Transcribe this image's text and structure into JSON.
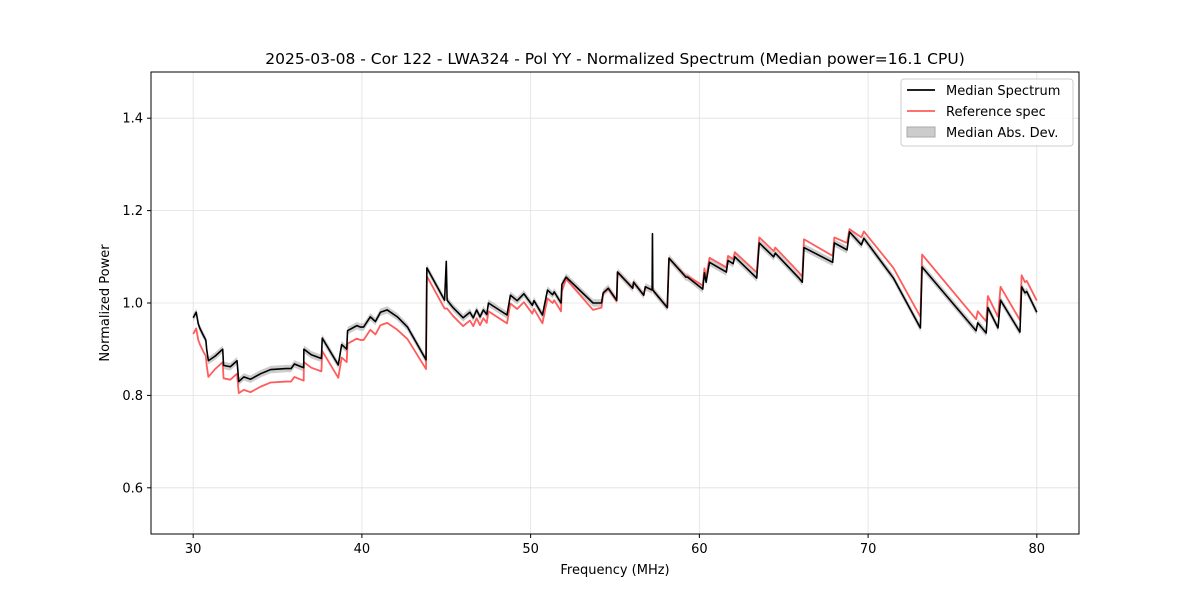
{
  "chart_data": {
    "type": "line",
    "title": "2025-03-08 - Cor 122 - LWA324 - Pol YY - Normalized Spectrum (Median power=16.1 CPU)",
    "xlabel": "Frequency (MHz)",
    "ylabel": "Normalized Power",
    "xlim": [
      27.5,
      82.5
    ],
    "ylim": [
      0.5,
      1.5
    ],
    "xticks": [
      30,
      40,
      50,
      60,
      70,
      80
    ],
    "xtick_labels": [
      "30",
      "40",
      "50",
      "60",
      "70",
      "80"
    ],
    "yticks": [
      0.6,
      0.8,
      1.0,
      1.2,
      1.4
    ],
    "ytick_labels": [
      "0.6",
      "0.8",
      "1.0",
      "1.2",
      "1.4"
    ],
    "grid": true,
    "legend_position": "top-right",
    "legend": [
      "Median Spectrum",
      "Reference spec",
      "Median Abs. Dev."
    ],
    "colors": {
      "median": "#000000",
      "reference": "#ff5c5c",
      "mad": "#bbbbbb"
    },
    "mad_halfwidth": 0.008,
    "x": [
      30.0,
      30.18,
      30.3,
      30.4,
      30.6,
      30.75,
      30.8,
      30.9,
      31.3,
      31.75,
      31.8,
      32.2,
      32.6,
      32.7,
      33.0,
      33.4,
      34.0,
      34.6,
      35.5,
      35.8,
      36.0,
      36.4,
      36.55,
      36.56,
      37.0,
      37.6,
      37.65,
      38.6,
      38.8,
      39.1,
      39.15,
      39.7,
      39.9,
      40.1,
      40.5,
      40.8,
      41.1,
      41.5,
      42.1,
      42.7,
      43.8,
      43.85,
      44.9,
      45.0,
      45.05,
      45.4,
      46.0,
      46.4,
      46.6,
      46.8,
      47.0,
      47.2,
      47.4,
      47.5,
      48.6,
      48.8,
      49.2,
      49.6,
      50.1,
      50.2,
      50.7,
      51.0,
      51.3,
      51.4,
      51.8,
      51.85,
      52.1,
      53.7,
      54.2,
      54.3,
      54.6,
      55.1,
      55.15,
      56.05,
      56.1,
      56.7,
      56.8,
      57.2,
      57.22,
      57.24,
      58.1,
      58.2,
      59.2,
      59.3,
      60.2,
      60.3,
      60.4,
      60.6,
      61.6,
      61.7,
      62.0,
      62.1,
      63.4,
      63.55,
      64.4,
      64.5,
      65.9,
      66.1,
      66.2,
      67.9,
      68.0,
      68.75,
      68.9,
      69.6,
      69.75,
      71.5,
      73.1,
      73.2,
      76.4,
      76.5,
      77.0,
      77.1,
      77.7,
      77.85,
      79.0,
      79.1,
      79.3,
      79.4,
      80.0
    ],
    "series": [
      {
        "name": "Median Spectrum",
        "values": [
          0.968,
          0.98,
          0.955,
          0.945,
          0.93,
          0.92,
          0.9,
          0.875,
          0.885,
          0.9,
          0.865,
          0.862,
          0.875,
          0.83,
          0.84,
          0.835,
          0.847,
          0.856,
          0.858,
          0.858,
          0.868,
          0.862,
          0.86,
          0.9,
          0.888,
          0.88,
          0.924,
          0.866,
          0.91,
          0.9,
          0.94,
          0.951,
          0.948,
          0.948,
          0.97,
          0.96,
          0.98,
          0.985,
          0.97,
          0.948,
          0.877,
          1.076,
          1.006,
          1.09,
          1.006,
          0.99,
          0.968,
          0.98,
          0.968,
          0.985,
          0.97,
          0.985,
          0.975,
          1.0,
          0.974,
          1.017,
          1.005,
          1.02,
          0.995,
          1.005,
          0.974,
          1.028,
          1.018,
          1.024,
          1.0,
          1.04,
          1.056,
          1.0,
          1.0,
          1.022,
          1.032,
          1.006,
          1.067,
          1.032,
          1.045,
          1.017,
          1.035,
          1.028,
          1.15,
          1.028,
          0.99,
          1.097,
          1.056,
          1.056,
          1.03,
          1.065,
          1.045,
          1.088,
          1.067,
          1.092,
          1.085,
          1.1,
          1.054,
          1.13,
          1.1,
          1.108,
          1.054,
          1.045,
          1.12,
          1.088,
          1.13,
          1.115,
          1.154,
          1.126,
          1.14,
          1.054,
          0.946,
          1.078,
          0.94,
          0.957,
          0.935,
          0.99,
          0.946,
          1.006,
          0.937,
          1.035,
          1.022,
          1.025,
          0.98
        ]
      },
      {
        "name": "Reference spec",
        "values": [
          0.933,
          0.945,
          0.92,
          0.91,
          0.895,
          0.885,
          0.865,
          0.84,
          0.857,
          0.872,
          0.837,
          0.834,
          0.847,
          0.805,
          0.812,
          0.807,
          0.819,
          0.828,
          0.83,
          0.83,
          0.84,
          0.834,
          0.832,
          0.872,
          0.86,
          0.852,
          0.896,
          0.838,
          0.882,
          0.872,
          0.912,
          0.923,
          0.92,
          0.92,
          0.942,
          0.932,
          0.952,
          0.957,
          0.942,
          0.922,
          0.857,
          1.058,
          0.988,
          0.988,
          0.988,
          0.972,
          0.95,
          0.962,
          0.95,
          0.967,
          0.952,
          0.967,
          0.957,
          0.982,
          0.956,
          0.999,
          0.987,
          1.002,
          0.977,
          0.987,
          0.956,
          1.01,
          1.0,
          1.006,
          0.982,
          1.025,
          1.052,
          0.985,
          0.99,
          1.02,
          1.03,
          1.004,
          1.067,
          1.032,
          1.045,
          1.017,
          1.035,
          1.028,
          1.028,
          1.028,
          0.99,
          1.097,
          1.058,
          1.058,
          1.038,
          1.075,
          1.055,
          1.098,
          1.077,
          1.102,
          1.095,
          1.11,
          1.066,
          1.142,
          1.112,
          1.12,
          1.066,
          1.057,
          1.138,
          1.102,
          1.142,
          1.13,
          1.16,
          1.142,
          1.155,
          1.076,
          0.97,
          1.105,
          0.965,
          0.982,
          0.96,
          1.015,
          0.97,
          1.035,
          0.963,
          1.06,
          1.045,
          1.048,
          1.005
        ]
      }
    ]
  }
}
